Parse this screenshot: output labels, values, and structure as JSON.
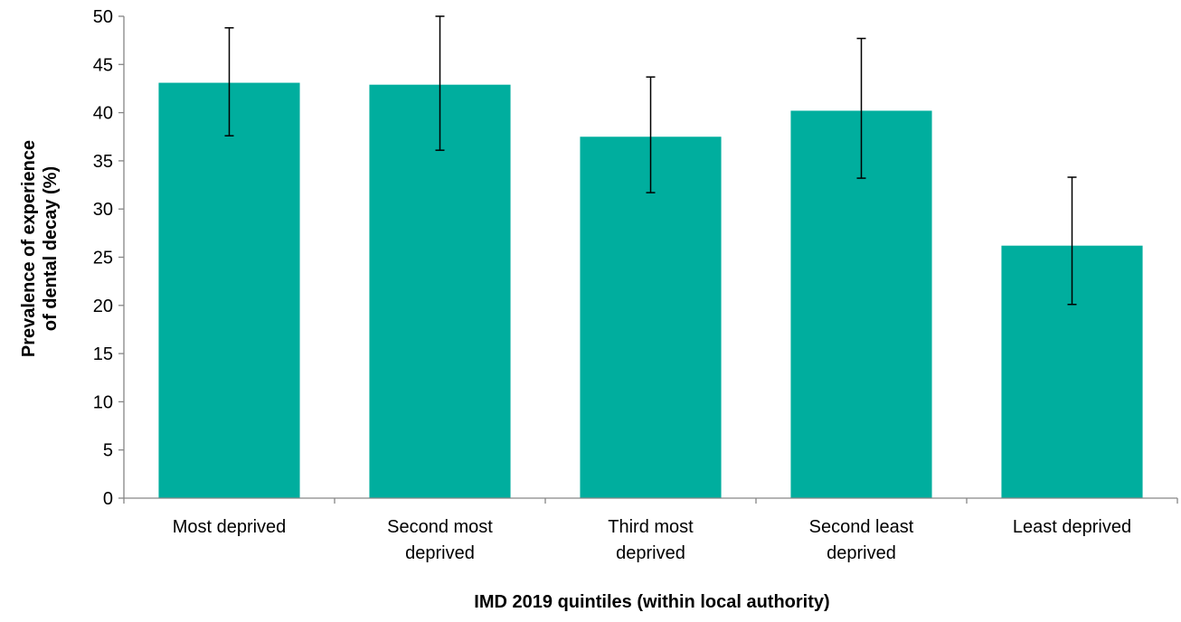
{
  "chart_data": {
    "type": "bar",
    "title": "",
    "xlabel": "IMD 2019 quintiles (within local authority)",
    "ylabel_lines": [
      "Prevalence of experience",
      "of dental decay (%)"
    ],
    "ylim": [
      0,
      50
    ],
    "yticks": [
      "0",
      "5",
      "10",
      "15",
      "20",
      "25",
      "30",
      "35",
      "40",
      "45",
      "50"
    ],
    "grid": false,
    "legend": "none",
    "bar_color": "#00ae9e",
    "categories": [
      [
        "Most deprived"
      ],
      [
        "Second most",
        "deprived"
      ],
      [
        "Third most",
        "deprived"
      ],
      [
        "Second least",
        "deprived"
      ],
      [
        "Least deprived"
      ]
    ],
    "values": [
      43.1,
      42.9,
      37.5,
      40.2,
      26.2
    ],
    "error_low": [
      37.6,
      36.1,
      31.7,
      33.2,
      20.1
    ],
    "error_high": [
      48.8,
      50.0,
      43.7,
      47.7,
      33.3
    ]
  }
}
